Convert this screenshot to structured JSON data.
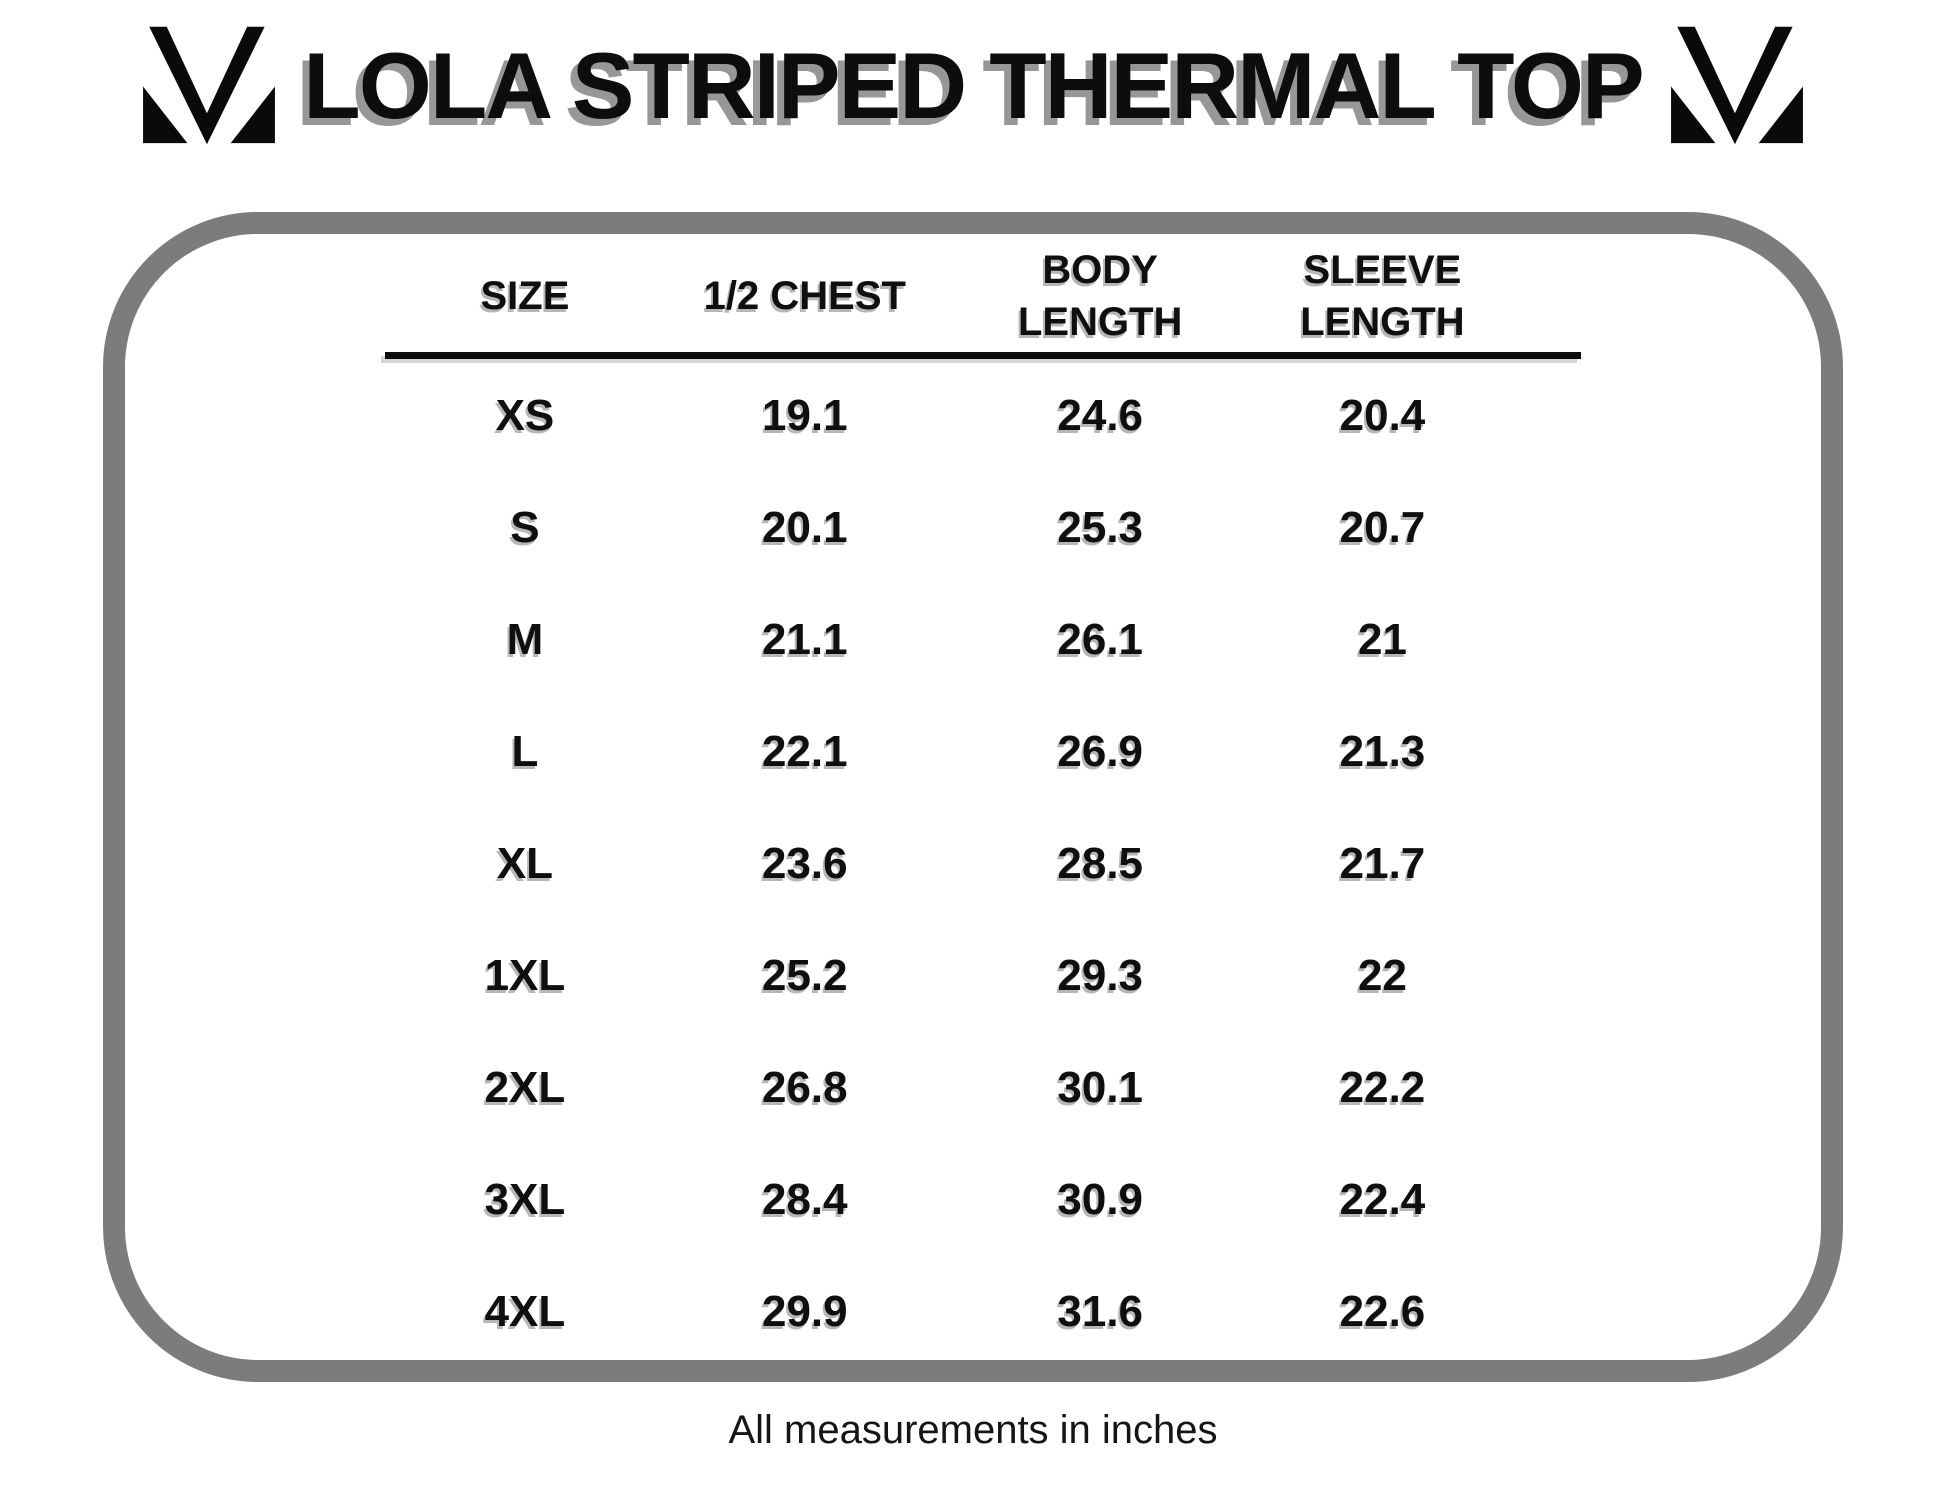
{
  "header": {
    "title": "LOLA STRIPED THERMAL TOP",
    "left_logo": "brand-monogram-m",
    "right_logo": "brand-monogram-m"
  },
  "size_chart": {
    "columns": [
      "SIZE",
      "1/2 CHEST",
      "BODY LENGTH",
      "SLEEVE LENGTH"
    ],
    "rows": [
      {
        "size": "XS",
        "half_chest": "19.1",
        "body_length": "24.6",
        "sleeve_length": "20.4"
      },
      {
        "size": "S",
        "half_chest": "20.1",
        "body_length": "25.3",
        "sleeve_length": "20.7"
      },
      {
        "size": "M",
        "half_chest": "21.1",
        "body_length": "26.1",
        "sleeve_length": "21"
      },
      {
        "size": "L",
        "half_chest": "22.1",
        "body_length": "26.9",
        "sleeve_length": "21.3"
      },
      {
        "size": "XL",
        "half_chest": "23.6",
        "body_length": "28.5",
        "sleeve_length": "21.7"
      },
      {
        "size": "1XL",
        "half_chest": "25.2",
        "body_length": "29.3",
        "sleeve_length": "22"
      },
      {
        "size": "2XL",
        "half_chest": "26.8",
        "body_length": "30.1",
        "sleeve_length": "22.2"
      },
      {
        "size": "3XL",
        "half_chest": "28.4",
        "body_length": "30.9",
        "sleeve_length": "22.4"
      },
      {
        "size": "4XL",
        "half_chest": "29.9",
        "body_length": "31.6",
        "sleeve_length": "22.6"
      }
    ]
  },
  "footer": {
    "note": "All measurements in inches"
  },
  "colors": {
    "background": "#ffffff",
    "text": "#0f0f0f",
    "frame_border": "#7c7c7c",
    "title_shadow": "#979797"
  }
}
